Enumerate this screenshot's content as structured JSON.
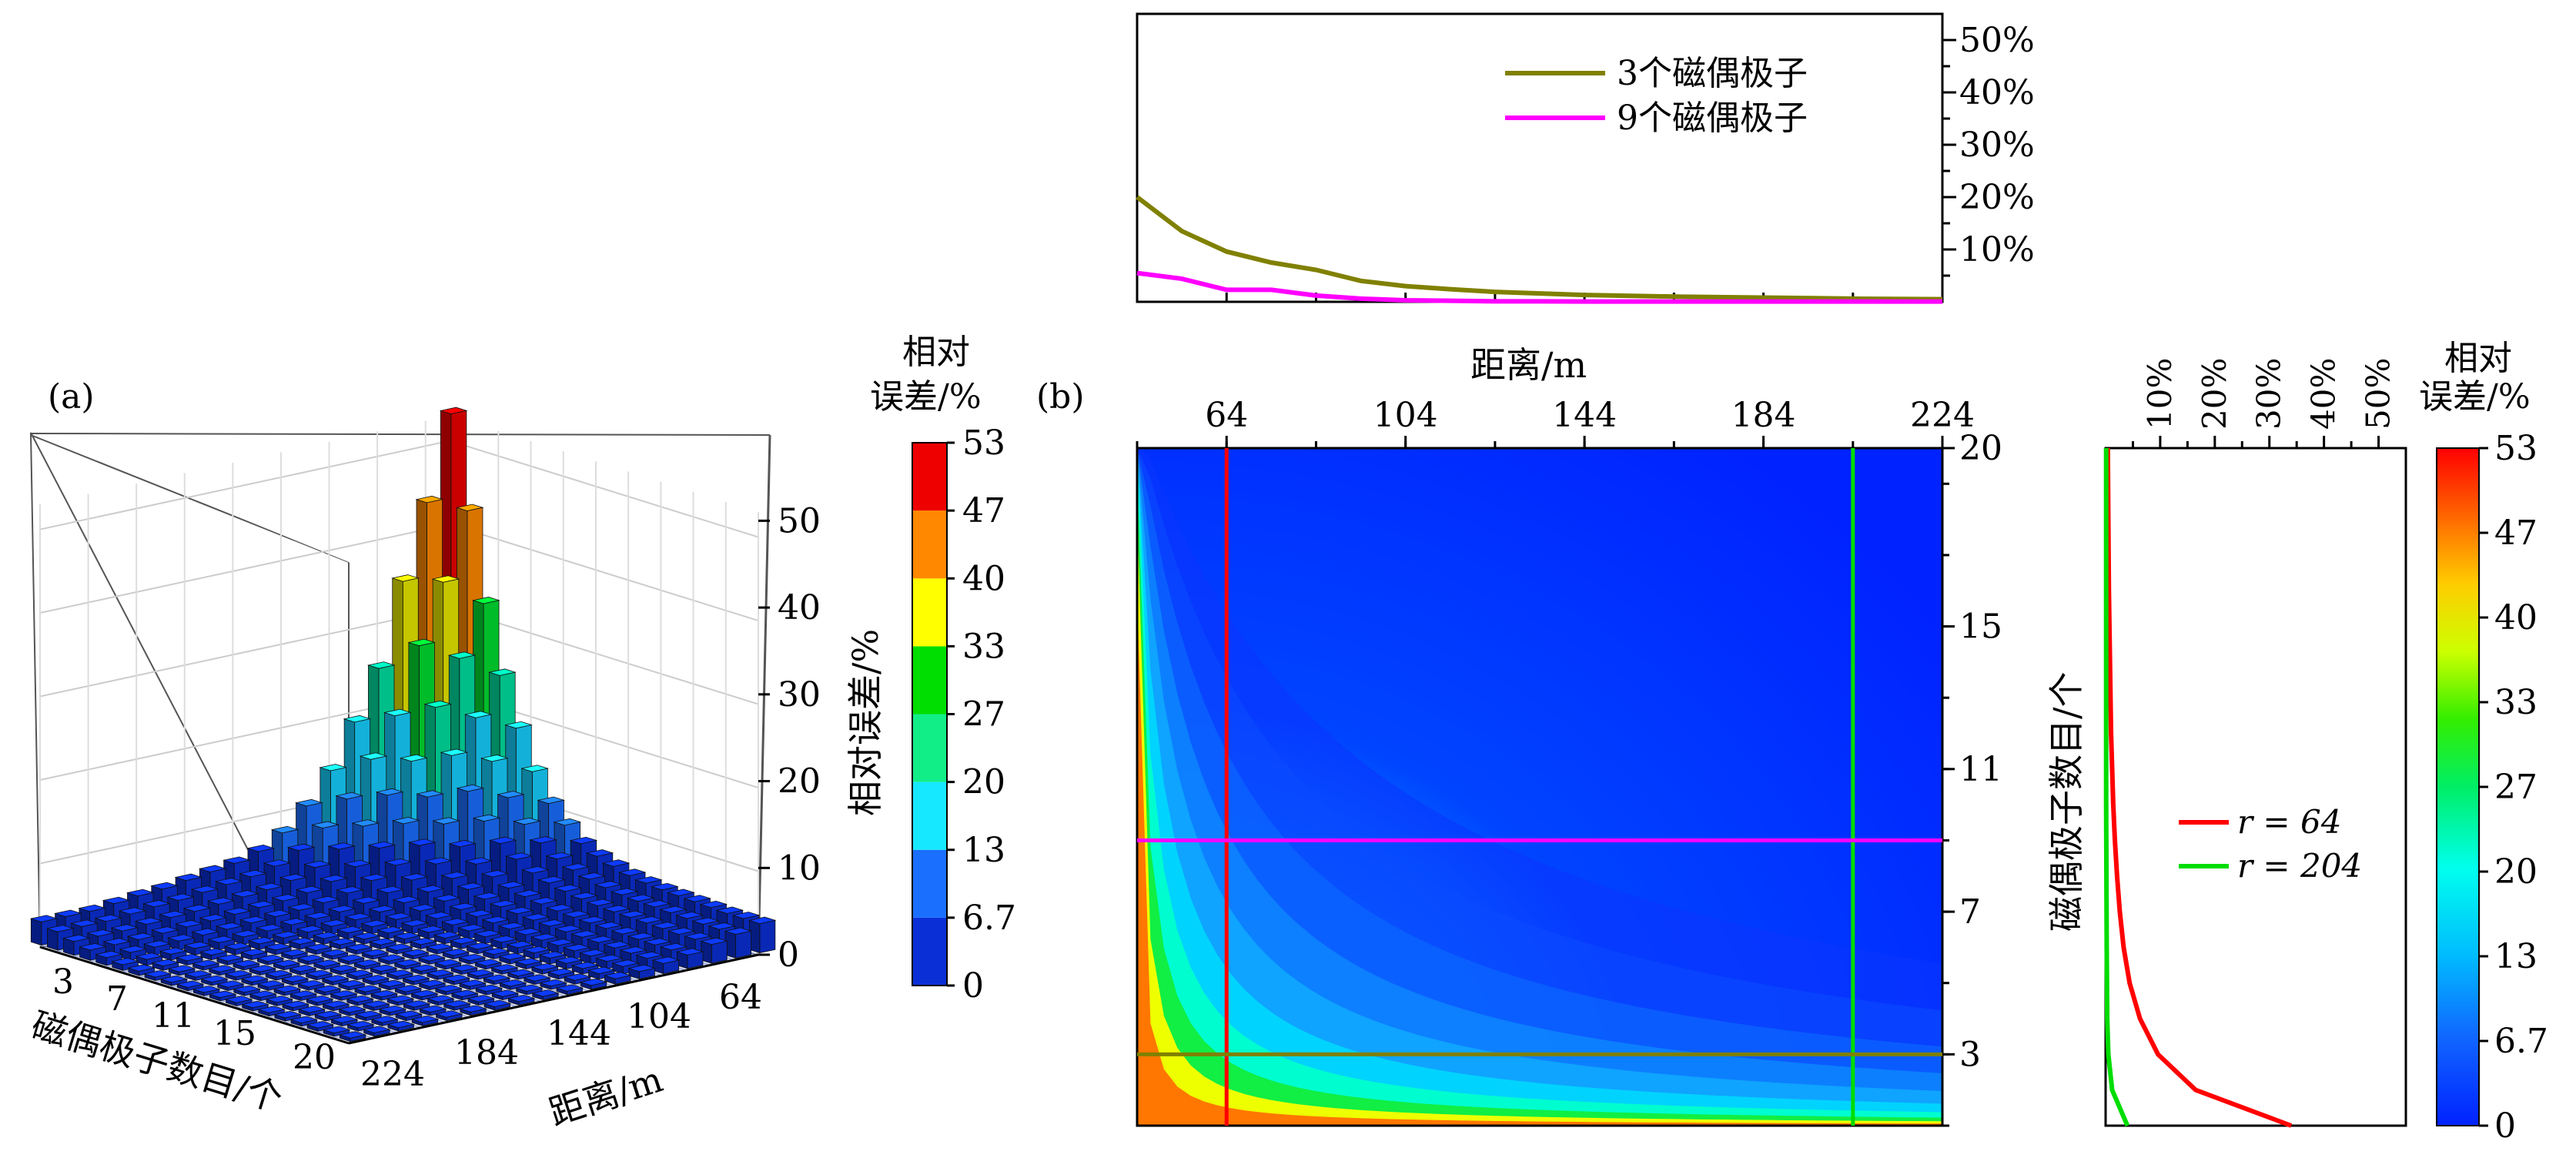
{
  "panel_a": {
    "label": "(a)",
    "colorbar_title": [
      "相对",
      "误差/%"
    ],
    "colorbar_ticks": [
      "53",
      "47",
      "40",
      "33",
      "27",
      "20",
      "13",
      "6.7",
      "0"
    ],
    "zlabel": "相对误差/%",
    "ylabel": "磁偶极子数目/个",
    "xlabel": "距离/m"
  },
  "panel_b": {
    "label": "(b)",
    "xlabel": "距离/m",
    "ylabel": "磁偶极子数目/个",
    "colorbar_title": [
      "相对",
      "误差/%"
    ],
    "colorbar_ticks": [
      "53",
      "47",
      "40",
      "33",
      "27",
      "20",
      "13",
      "6.7",
      "0"
    ],
    "top_legend": [
      "3个磁偶极子",
      "9个磁偶极子"
    ],
    "right_legend": [
      "r = 64",
      "r = 204"
    ]
  },
  "colors": {
    "line_3": "#808000",
    "line_9": "#ff00ff",
    "line_r64": "#ff0000",
    "line_r204": "#00dd00",
    "heat_low": "#0022ff",
    "bar_base": "#0a2fd6"
  },
  "chart_data": [
    {
      "id": "a",
      "type": "bar3d",
      "zlabel": "相对误差/%",
      "zlim": [
        0,
        53
      ],
      "zticks": [
        "0",
        "10",
        "20",
        "30",
        "40",
        "50"
      ],
      "x_ticks": [
        "224",
        "184",
        "144",
        "104",
        "64"
      ],
      "y_ticks": [
        "3",
        "7",
        "11",
        "15",
        "20"
      ],
      "colorbar_levels": [
        "0",
        "6.7",
        "13",
        "20",
        "27",
        "33",
        "40",
        "47",
        "53"
      ],
      "peak_value": 53,
      "back_row_values": [
        3.1,
        3.4,
        3.6,
        4.0,
        4.4,
        4.8,
        5.6,
        7.2,
        9.8,
        13.4,
        18.6,
        24.4,
        34.2,
        43.0,
        53.0
      ],
      "side_row_values": [
        53.0,
        42.0,
        31.5,
        23.5,
        17.8,
        13.2,
        10.0,
        8.0,
        6.4,
        5.5,
        4.9,
        4.4,
        4.1,
        3.9,
        3.8,
        3.7,
        3.6,
        3.5
      ]
    },
    {
      "id": "b_top",
      "type": "line",
      "xlabel": "距离/m",
      "yticks": [
        "10%",
        "20%",
        "30%",
        "40%",
        "50%"
      ],
      "ylim": [
        0,
        55
      ],
      "xlim": [
        44,
        224
      ],
      "series": [
        {
          "name": "3个磁偶极子",
          "x": [
            44,
            54,
            64,
            74,
            84,
            94,
            104,
            114,
            124,
            134,
            144,
            164,
            184,
            204,
            224
          ],
          "values": [
            20,
            13.5,
            9.6,
            7.5,
            6.1,
            4.0,
            3.0,
            2.4,
            1.9,
            1.6,
            1.3,
            1.0,
            0.8,
            0.6,
            0.5
          ]
        },
        {
          "name": "9个磁偶极子",
          "x": [
            44,
            54,
            64,
            74,
            84,
            94,
            104,
            114,
            124,
            134,
            144,
            164,
            184,
            204,
            224
          ],
          "values": [
            5.5,
            4.4,
            2.3,
            2.3,
            1.2,
            0.6,
            0.3,
            0.2,
            0.1,
            0.1,
            0.05,
            0.05,
            0.05,
            0.05,
            0.05
          ]
        }
      ]
    },
    {
      "id": "b_main",
      "type": "heatmap",
      "xlabel": "距离/m",
      "ylabel": "磁偶极子数目/个",
      "xticks": [
        "64",
        "104",
        "144",
        "184",
        "224"
      ],
      "yticks": [
        "3",
        "7",
        "11",
        "15",
        "20"
      ],
      "xlim": [
        44,
        224
      ],
      "ylim": [
        1,
        20
      ],
      "zlim": [
        0,
        53
      ],
      "colorbar_levels": [
        "0",
        "6.7",
        "13",
        "20",
        "27",
        "33",
        "40",
        "47",
        "53"
      ],
      "reference_lines": {
        "vertical_r": [
          64,
          204
        ],
        "horizontal_n": [
          3,
          9
        ]
      }
    },
    {
      "id": "b_right",
      "type": "line",
      "xticks": [
        "10%",
        "20%",
        "30%",
        "40%",
        "50%"
      ],
      "xlim": [
        0,
        55
      ],
      "ylim": [
        1,
        20
      ],
      "series": [
        {
          "name": "r = 64",
          "y": [
            1,
            2,
            3,
            4,
            5,
            6,
            7,
            8,
            9,
            10,
            12,
            14,
            16,
            18,
            20
          ],
          "values": [
            34,
            16.5,
            9.6,
            6.3,
            4.4,
            3.3,
            2.6,
            2.1,
            1.7,
            1.4,
            1.0,
            0.8,
            0.6,
            0.5,
            0.4
          ]
        },
        {
          "name": "r = 204",
          "y": [
            1,
            2,
            3,
            4,
            6,
            8,
            10,
            14,
            20
          ],
          "values": [
            4.0,
            1.2,
            0.5,
            0.3,
            0.2,
            0.15,
            0.1,
            0.1,
            0.1
          ]
        }
      ]
    }
  ]
}
